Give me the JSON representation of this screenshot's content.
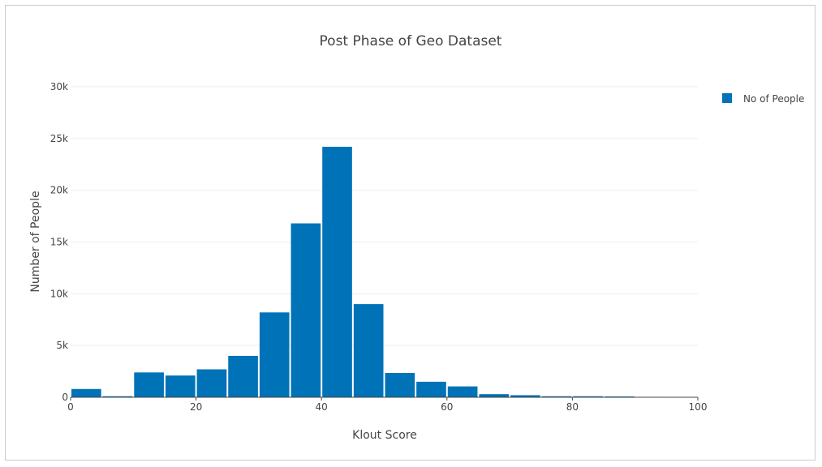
{
  "chart_data": {
    "type": "bar",
    "title": "Post Phase of Geo Dataset",
    "xlabel": "Klout Score",
    "ylabel": "Number of People",
    "xlim": [
      0,
      100
    ],
    "ylim": [
      0,
      30000
    ],
    "x_ticks": [
      0,
      20,
      40,
      60,
      80,
      100
    ],
    "x_tick_labels": [
      "0",
      "20",
      "40",
      "60",
      "80",
      "100"
    ],
    "y_ticks": [
      0,
      5000,
      10000,
      15000,
      20000,
      25000,
      30000
    ],
    "y_tick_labels": [
      "0",
      "5k",
      "10k",
      "15k",
      "20k",
      "25k",
      "30k"
    ],
    "bin_width": 5,
    "bins": [
      0,
      5,
      10,
      15,
      20,
      25,
      30,
      35,
      40,
      45,
      50,
      55,
      60,
      65,
      70,
      75,
      80,
      85,
      90,
      95
    ],
    "series": [
      {
        "name": "No of People",
        "color": "#0072b8",
        "values": [
          800,
          100,
          2400,
          2100,
          2700,
          4000,
          8200,
          16800,
          24200,
          9000,
          2350,
          1500,
          1050,
          300,
          200,
          100,
          100,
          80,
          40,
          20
        ]
      }
    ],
    "grid": true,
    "legend_position": "top-right"
  }
}
